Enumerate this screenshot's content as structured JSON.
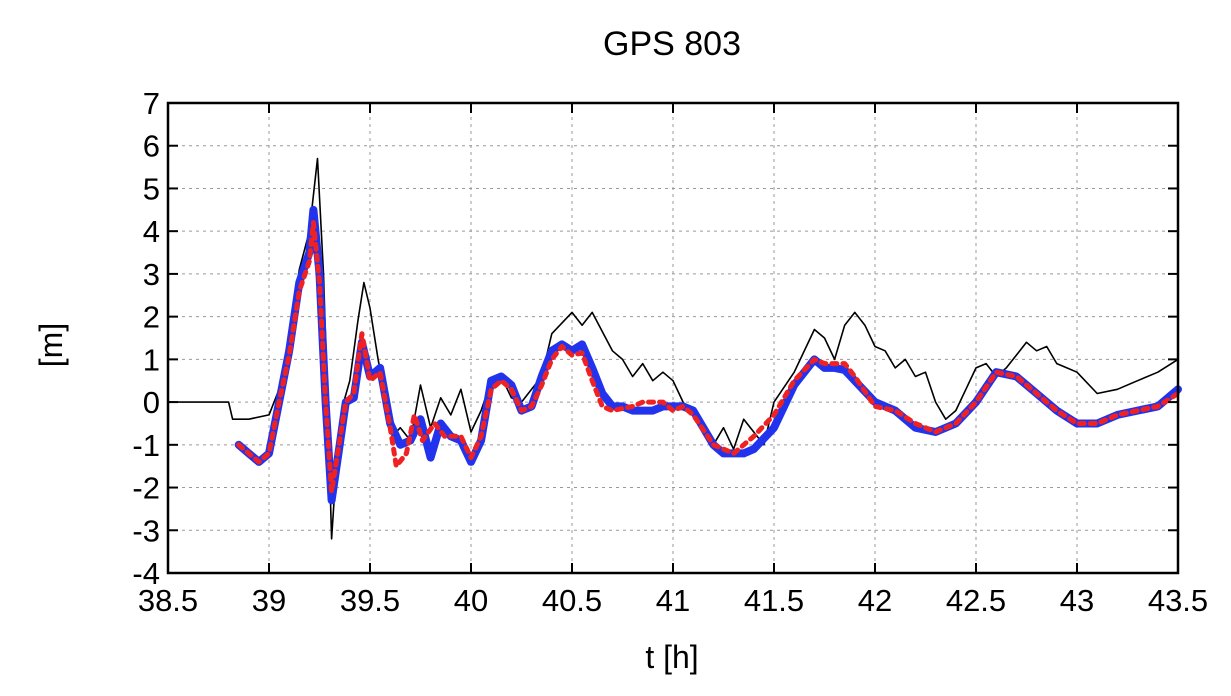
{
  "chart_data": {
    "type": "line",
    "title": "GPS 803",
    "xlabel": "t [h]",
    "ylabel": "[m]",
    "xlim": [
      38.5,
      43.5
    ],
    "ylim": [
      -4,
      7
    ],
    "grid": true,
    "x_ticks": [
      "38.5",
      "39",
      "39.5",
      "40",
      "40.5",
      "41",
      "41.5",
      "42",
      "42.5",
      "43",
      "43.5"
    ],
    "y_ticks": [
      "-4",
      "-3",
      "-2",
      "-1",
      "0",
      "1",
      "2",
      "3",
      "4",
      "5",
      "6",
      "7"
    ],
    "series": [
      {
        "color": "#000000",
        "style": "thin-solid",
        "points": [
          [
            38.5,
            0.0
          ],
          [
            38.8,
            0.0
          ],
          [
            38.82,
            -0.4
          ],
          [
            38.9,
            -0.4
          ],
          [
            39.0,
            -0.3
          ],
          [
            39.05,
            0.3
          ],
          [
            39.1,
            1.5
          ],
          [
            39.15,
            3.1
          ],
          [
            39.2,
            4.0
          ],
          [
            39.24,
            5.7
          ],
          [
            39.27,
            3.0
          ],
          [
            39.29,
            0.0
          ],
          [
            39.31,
            -3.2
          ],
          [
            39.34,
            -1.0
          ],
          [
            39.37,
            0.0
          ],
          [
            39.4,
            0.5
          ],
          [
            39.44,
            1.9
          ],
          [
            39.47,
            2.8
          ],
          [
            39.5,
            2.2
          ],
          [
            39.54,
            1.0
          ],
          [
            39.58,
            0.0
          ],
          [
            39.61,
            -0.8
          ],
          [
            39.65,
            -0.6
          ],
          [
            39.7,
            -0.9
          ],
          [
            39.75,
            0.4
          ],
          [
            39.8,
            -0.6
          ],
          [
            39.85,
            0.1
          ],
          [
            39.9,
            -0.3
          ],
          [
            39.95,
            0.3
          ],
          [
            40.0,
            -0.7
          ],
          [
            40.05,
            -0.2
          ],
          [
            40.1,
            0.5
          ],
          [
            40.15,
            0.6
          ],
          [
            40.2,
            0.1
          ],
          [
            40.25,
            0.0
          ],
          [
            40.3,
            0.3
          ],
          [
            40.35,
            0.6
          ],
          [
            40.4,
            1.6
          ],
          [
            40.5,
            2.1
          ],
          [
            40.55,
            1.8
          ],
          [
            40.6,
            2.1
          ],
          [
            40.7,
            1.2
          ],
          [
            40.75,
            1.0
          ],
          [
            40.8,
            0.6
          ],
          [
            40.85,
            0.9
          ],
          [
            40.9,
            0.5
          ],
          [
            40.95,
            0.7
          ],
          [
            41.0,
            0.5
          ],
          [
            41.05,
            0.0
          ],
          [
            41.1,
            -0.3
          ],
          [
            41.2,
            -1.0
          ],
          [
            41.25,
            -0.6
          ],
          [
            41.3,
            -1.1
          ],
          [
            41.35,
            -0.4
          ],
          [
            41.45,
            -1.0
          ],
          [
            41.5,
            0.0
          ],
          [
            41.6,
            0.7
          ],
          [
            41.7,
            1.7
          ],
          [
            41.75,
            1.5
          ],
          [
            41.8,
            1.0
          ],
          [
            41.85,
            1.8
          ],
          [
            41.9,
            2.1
          ],
          [
            41.95,
            1.8
          ],
          [
            42.0,
            1.3
          ],
          [
            42.05,
            1.2
          ],
          [
            42.1,
            0.8
          ],
          [
            42.15,
            1.0
          ],
          [
            42.2,
            0.6
          ],
          [
            42.25,
            0.7
          ],
          [
            42.3,
            0.0
          ],
          [
            42.35,
            -0.4
          ],
          [
            42.4,
            -0.2
          ],
          [
            42.45,
            0.3
          ],
          [
            42.5,
            0.8
          ],
          [
            42.55,
            0.9
          ],
          [
            42.6,
            0.6
          ],
          [
            42.65,
            0.8
          ],
          [
            42.7,
            1.1
          ],
          [
            42.75,
            1.4
          ],
          [
            42.8,
            1.2
          ],
          [
            42.85,
            1.3
          ],
          [
            42.9,
            0.9
          ],
          [
            42.95,
            0.8
          ],
          [
            43.0,
            0.7
          ],
          [
            43.1,
            0.2
          ],
          [
            43.2,
            0.3
          ],
          [
            43.3,
            0.5
          ],
          [
            43.4,
            0.7
          ],
          [
            43.5,
            1.0
          ]
        ]
      },
      {
        "color": "#2233ee",
        "style": "thick-solid",
        "points": [
          [
            38.85,
            -1.0
          ],
          [
            38.9,
            -1.2
          ],
          [
            38.95,
            -1.4
          ],
          [
            39.0,
            -1.2
          ],
          [
            39.05,
            0.0
          ],
          [
            39.1,
            1.2
          ],
          [
            39.15,
            2.8
          ],
          [
            39.2,
            3.5
          ],
          [
            39.22,
            4.5
          ],
          [
            39.25,
            3.0
          ],
          [
            39.28,
            0.0
          ],
          [
            39.31,
            -2.3
          ],
          [
            39.35,
            -1.0
          ],
          [
            39.38,
            0.0
          ],
          [
            39.42,
            0.1
          ],
          [
            39.46,
            1.4
          ],
          [
            39.5,
            0.6
          ],
          [
            39.55,
            0.8
          ],
          [
            39.6,
            -0.5
          ],
          [
            39.65,
            -1.0
          ],
          [
            39.7,
            -0.9
          ],
          [
            39.75,
            -0.4
          ],
          [
            39.8,
            -1.3
          ],
          [
            39.85,
            -0.5
          ],
          [
            39.9,
            -0.8
          ],
          [
            39.95,
            -0.9
          ],
          [
            40.0,
            -1.4
          ],
          [
            40.05,
            -0.9
          ],
          [
            40.1,
            0.5
          ],
          [
            40.15,
            0.6
          ],
          [
            40.2,
            0.4
          ],
          [
            40.25,
            -0.2
          ],
          [
            40.3,
            -0.1
          ],
          [
            40.35,
            0.6
          ],
          [
            40.4,
            1.2
          ],
          [
            40.45,
            1.35
          ],
          [
            40.5,
            1.2
          ],
          [
            40.55,
            1.35
          ],
          [
            40.6,
            0.8
          ],
          [
            40.65,
            0.2
          ],
          [
            40.7,
            -0.1
          ],
          [
            40.75,
            -0.1
          ],
          [
            40.8,
            -0.2
          ],
          [
            40.9,
            -0.2
          ],
          [
            40.95,
            -0.1
          ],
          [
            41.0,
            -0.1
          ],
          [
            41.05,
            -0.1
          ],
          [
            41.1,
            -0.2
          ],
          [
            41.2,
            -1.0
          ],
          [
            41.25,
            -1.2
          ],
          [
            41.3,
            -1.2
          ],
          [
            41.35,
            -1.2
          ],
          [
            41.4,
            -1.1
          ],
          [
            41.5,
            -0.6
          ],
          [
            41.6,
            0.4
          ],
          [
            41.7,
            1.0
          ],
          [
            41.75,
            0.8
          ],
          [
            41.8,
            0.8
          ],
          [
            41.85,
            0.75
          ],
          [
            41.9,
            0.5
          ],
          [
            42.0,
            0.0
          ],
          [
            42.1,
            -0.2
          ],
          [
            42.2,
            -0.6
          ],
          [
            42.3,
            -0.7
          ],
          [
            42.4,
            -0.5
          ],
          [
            42.5,
            0.0
          ],
          [
            42.6,
            0.7
          ],
          [
            42.7,
            0.6
          ],
          [
            42.8,
            0.2
          ],
          [
            42.9,
            -0.2
          ],
          [
            43.0,
            -0.5
          ],
          [
            43.1,
            -0.5
          ],
          [
            43.2,
            -0.3
          ],
          [
            43.3,
            -0.2
          ],
          [
            43.4,
            -0.1
          ],
          [
            43.5,
            0.3
          ]
        ]
      },
      {
        "color": "#ee2222",
        "style": "dotted",
        "points": [
          [
            38.85,
            -1.0
          ],
          [
            38.9,
            -1.2
          ],
          [
            38.95,
            -1.4
          ],
          [
            39.0,
            -1.2
          ],
          [
            39.05,
            0.0
          ],
          [
            39.1,
            1.1
          ],
          [
            39.15,
            2.6
          ],
          [
            39.2,
            3.3
          ],
          [
            39.22,
            4.2
          ],
          [
            39.25,
            2.8
          ],
          [
            39.28,
            0.0
          ],
          [
            39.31,
            -2.1
          ],
          [
            39.35,
            -0.9
          ],
          [
            39.38,
            0.0
          ],
          [
            39.42,
            0.2
          ],
          [
            39.46,
            1.6
          ],
          [
            39.5,
            0.5
          ],
          [
            39.55,
            0.7
          ],
          [
            39.6,
            -0.6
          ],
          [
            39.63,
            -1.5
          ],
          [
            39.68,
            -1.2
          ],
          [
            39.72,
            -0.3
          ],
          [
            39.76,
            -0.9
          ],
          [
            39.82,
            -0.5
          ],
          [
            39.87,
            -0.8
          ],
          [
            39.95,
            -0.8
          ],
          [
            40.0,
            -1.3
          ],
          [
            40.05,
            -0.8
          ],
          [
            40.1,
            0.3
          ],
          [
            40.15,
            0.5
          ],
          [
            40.2,
            0.3
          ],
          [
            40.25,
            -0.2
          ],
          [
            40.3,
            -0.1
          ],
          [
            40.35,
            0.4
          ],
          [
            40.4,
            1.0
          ],
          [
            40.45,
            1.3
          ],
          [
            40.5,
            1.1
          ],
          [
            40.55,
            1.15
          ],
          [
            40.6,
            0.5
          ],
          [
            40.65,
            -0.1
          ],
          [
            40.7,
            -0.2
          ],
          [
            40.8,
            -0.1
          ],
          [
            40.85,
            0.0
          ],
          [
            40.95,
            0.0
          ],
          [
            41.0,
            -0.2
          ],
          [
            41.05,
            -0.1
          ],
          [
            41.1,
            -0.3
          ],
          [
            41.2,
            -1.0
          ],
          [
            41.25,
            -1.1
          ],
          [
            41.3,
            -1.2
          ],
          [
            41.35,
            -1.0
          ],
          [
            41.4,
            -0.8
          ],
          [
            41.5,
            -0.3
          ],
          [
            41.6,
            0.5
          ],
          [
            41.7,
            1.0
          ],
          [
            41.75,
            0.9
          ],
          [
            41.8,
            0.9
          ],
          [
            41.85,
            0.9
          ],
          [
            41.9,
            0.6
          ],
          [
            42.0,
            -0.1
          ],
          [
            42.1,
            -0.2
          ],
          [
            42.2,
            -0.5
          ],
          [
            42.3,
            -0.7
          ],
          [
            42.4,
            -0.5
          ],
          [
            42.5,
            0.0
          ],
          [
            42.6,
            0.7
          ],
          [
            42.7,
            0.6
          ],
          [
            42.8,
            0.2
          ],
          [
            42.9,
            -0.2
          ],
          [
            43.0,
            -0.5
          ],
          [
            43.1,
            -0.5
          ],
          [
            43.2,
            -0.3
          ],
          [
            43.3,
            -0.2
          ],
          [
            43.4,
            -0.1
          ],
          [
            43.5,
            0.2
          ]
        ]
      }
    ]
  }
}
